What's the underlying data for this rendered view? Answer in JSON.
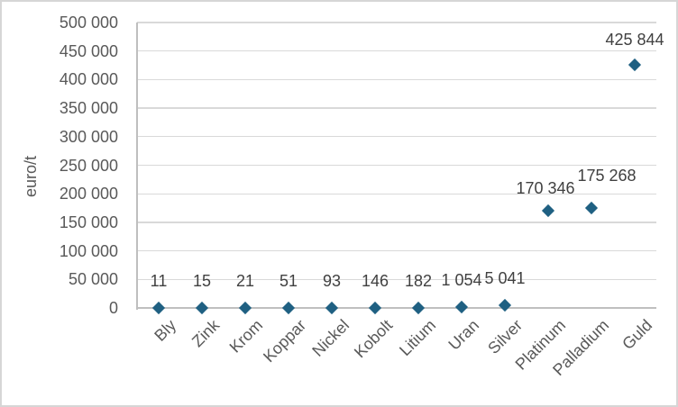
{
  "chart_data": {
    "type": "scatter",
    "marker": "diamond",
    "title": "",
    "xlabel": "",
    "ylabel": "euro/t",
    "categories": [
      "Bly",
      "Zink",
      "Krom",
      "Koppar",
      "Nickel",
      "Kobolt",
      "Litium",
      "Uran",
      "Silver",
      "Platinum",
      "Palladium",
      "Guld"
    ],
    "values": [
      11,
      15,
      21,
      51,
      93,
      146,
      182,
      1054,
      5041,
      170346,
      175268,
      425844
    ],
    "data_labels": [
      "11",
      "15",
      "21",
      "51",
      "93",
      "146",
      "182",
      "1 054",
      "5 041",
      "170 346",
      "175 268",
      "425 844"
    ],
    "ylim": [
      0,
      500000
    ],
    "y_tick_interval": 50000,
    "y_tick_labels": [
      "0",
      "50 000",
      "100 000",
      "150 000",
      "200 000",
      "250 000",
      "300 000",
      "350 000",
      "400 000",
      "450 000",
      "500 000"
    ],
    "grid": "horizontal",
    "legend": "none",
    "label_offsets": {
      "dy": [
        -30,
        -30,
        -30,
        -30,
        -30,
        -30,
        -30,
        -30,
        -30,
        -25,
        -36,
        -28
      ],
      "dx": [
        0,
        0,
        0,
        0,
        0,
        0,
        0,
        0,
        0,
        -3,
        17,
        0
      ]
    },
    "colors": {
      "marker": "#1F6082",
      "gridline": "#D9D9D9",
      "axis_line": "#BFBFBF",
      "tick_text": "#595959",
      "category_text": "#595959",
      "data_label_text": "#404040",
      "axis_title_text": "#595959",
      "figure_border": "#D6D6D6",
      "background": "#FFFFFF"
    }
  }
}
